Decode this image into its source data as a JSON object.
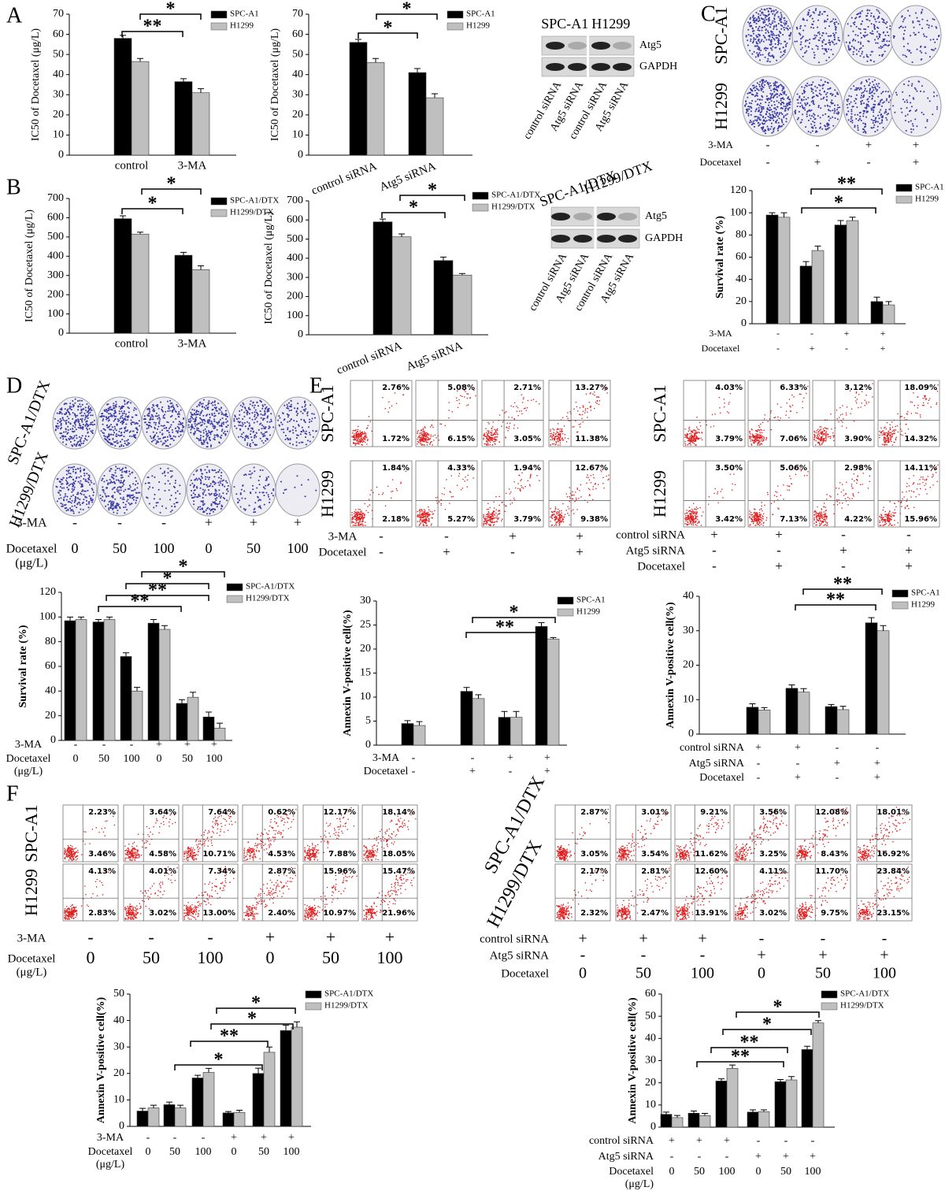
{
  "panel_letters": [
    "A",
    "B",
    "C",
    "D",
    "E",
    "F"
  ],
  "chart_data": [
    {
      "type": "bar",
      "ylabel": "IC50 of Docetaxel (μg/L)",
      "categories": [
        "control",
        "3-MA"
      ],
      "series": [
        {
          "name": "SPC-A1",
          "color": "#000000",
          "values": [
            58,
            36.5
          ],
          "errors": [
            1.5,
            1.5
          ]
        },
        {
          "name": "H1299",
          "color": "#bfbfbf",
          "values": [
            46.5,
            31
          ],
          "errors": [
            1.5,
            2
          ]
        }
      ],
      "ylim": [
        0,
        70
      ],
      "yticks": [
        0,
        10,
        20,
        30,
        40,
        50,
        60,
        70
      ],
      "annotations": [
        "*",
        "**"
      ]
    },
    {
      "type": "bar",
      "ylabel": "IC50 of Docetaxel (μg/L)",
      "categories": [
        "control siRNA",
        "Atg5 siRNA"
      ],
      "series": [
        {
          "name": "SPC-A1",
          "color": "#000000",
          "values": [
            56,
            41
          ],
          "errors": [
            1.5,
            2
          ]
        },
        {
          "name": "H1299",
          "color": "#bfbfbf",
          "values": [
            46,
            28.5
          ],
          "errors": [
            2,
            2
          ]
        }
      ],
      "ylim": [
        0,
        70
      ],
      "yticks": [
        0,
        10,
        20,
        30,
        40,
        50,
        60,
        70
      ],
      "annotations": [
        "*",
        "*"
      ]
    },
    {
      "type": "bar",
      "ylabel": "IC50 of Docetaxel (μg/L)",
      "categories": [
        "control",
        "3-MA"
      ],
      "series": [
        {
          "name": "SPC-A1/DTX",
          "color": "#000000",
          "values": [
            595,
            405
          ],
          "errors": [
            15,
            15
          ]
        },
        {
          "name": "H1299/DTX",
          "color": "#bfbfbf",
          "values": [
            515,
            330
          ],
          "errors": [
            10,
            20
          ]
        }
      ],
      "ylim": [
        0,
        700
      ],
      "yticks": [
        0,
        100,
        200,
        300,
        400,
        500,
        600,
        700
      ],
      "annotations": [
        "*",
        "*"
      ]
    },
    {
      "type": "bar",
      "ylabel": "IC50 of Docetaxel (μg/L)",
      "categories": [
        "control siRNA",
        "Atg5 siRNA"
      ],
      "series": [
        {
          "name": "SPC-A1/DTX",
          "color": "#000000",
          "values": [
            590,
            388
          ],
          "errors": [
            15,
            18
          ]
        },
        {
          "name": "H1299/DTX",
          "color": "#bfbfbf",
          "values": [
            512,
            312
          ],
          "errors": [
            15,
            8
          ]
        }
      ],
      "ylim": [
        0,
        700
      ],
      "yticks": [
        0,
        100,
        200,
        300,
        400,
        500,
        600,
        700
      ],
      "annotations": [
        "*",
        "*"
      ]
    },
    {
      "type": "bar",
      "ylabel": "Survival rate (%)",
      "conditions": [
        {
          "label": "3-MA",
          "values": [
            "-",
            "-",
            "+",
            "+"
          ]
        },
        {
          "label": "Docetaxel",
          "values": [
            "-",
            "+",
            "-",
            "+"
          ]
        }
      ],
      "series": [
        {
          "name": "SPC-A1",
          "color": "#000000",
          "values": [
            98,
            52,
            89,
            20
          ],
          "errors": [
            2,
            4,
            4,
            4
          ]
        },
        {
          "name": "H1299",
          "color": "#bfbfbf",
          "values": [
            96,
            66,
            93,
            17
          ],
          "errors": [
            4,
            4,
            3,
            3
          ]
        }
      ],
      "ylim": [
        0,
        120
      ],
      "yticks": [
        0,
        20,
        40,
        60,
        80,
        100,
        120
      ],
      "annotations": [
        "**",
        "*"
      ]
    },
    {
      "type": "bar",
      "ylabel": "Survival rate (%)",
      "conditions": [
        {
          "label": "3-MA",
          "values": [
            "-",
            "-",
            "-",
            "+",
            "+",
            "+"
          ]
        },
        {
          "label": "Docetaxel",
          "sublabel": "(μg/L)",
          "values": [
            "0",
            "50",
            "100",
            "0",
            "50",
            "100"
          ]
        }
      ],
      "series": [
        {
          "name": "SPC-A1/DTX",
          "color": "#000000",
          "values": [
            97,
            96,
            68,
            95,
            30,
            19
          ],
          "errors": [
            3,
            2,
            3,
            3,
            3,
            4
          ]
        },
        {
          "name": "H1299/DTX",
          "color": "#bfbfbf",
          "values": [
            98,
            98,
            40,
            90,
            35,
            10
          ],
          "errors": [
            2,
            2,
            3,
            3,
            4,
            4
          ]
        }
      ],
      "ylim": [
        0,
        120
      ],
      "yticks": [
        0,
        20,
        40,
        60,
        80,
        100,
        120
      ],
      "annotations": [
        "*",
        "*",
        "**",
        "**"
      ]
    },
    {
      "type": "bar",
      "ylabel": "Annexin V-positive cell(%)",
      "conditions": [
        {
          "label": "3-MA",
          "values": [
            "-",
            "-",
            "+",
            "+"
          ]
        },
        {
          "label": "Docetaxel",
          "values": [
            "-",
            "+",
            "-",
            "+"
          ]
        }
      ],
      "series": [
        {
          "name": "SPC-A1",
          "color": "#000000",
          "values": [
            4.5,
            11.2,
            5.8,
            24.7
          ],
          "errors": [
            0.6,
            0.8,
            1.2,
            0.8
          ]
        },
        {
          "name": "H1299",
          "color": "#bfbfbf",
          "values": [
            4.1,
            9.7,
            5.8,
            22.1
          ],
          "errors": [
            0.8,
            0.8,
            1.2,
            0.3
          ]
        }
      ],
      "ylim": [
        0,
        30
      ],
      "yticks": [
        0,
        5,
        10,
        15,
        20,
        25,
        30
      ],
      "annotations": [
        "*",
        "**"
      ]
    },
    {
      "type": "bar",
      "ylabel": "Annexin V-positive cell(%)",
      "conditions": [
        {
          "label": "control siRNA",
          "values": [
            "+",
            "+",
            "-",
            "-"
          ]
        },
        {
          "label": "Atg5 siRNA",
          "values": [
            "-",
            "-",
            "+",
            "+"
          ]
        },
        {
          "label": "Docetaxel",
          "values": [
            "-",
            "+",
            "-",
            "+"
          ]
        }
      ],
      "series": [
        {
          "name": "SPC-A1",
          "color": "#000000",
          "values": [
            7.8,
            13.3,
            8,
            32.3
          ],
          "errors": [
            1,
            1,
            0.6,
            1.5
          ]
        },
        {
          "name": "H1299",
          "color": "#bfbfbf",
          "values": [
            7,
            12.2,
            7.1,
            30
          ],
          "errors": [
            0.7,
            1,
            1,
            1.5
          ]
        }
      ],
      "ylim": [
        0,
        40
      ],
      "yticks": [
        0,
        10,
        20,
        30,
        40
      ],
      "annotations": [
        "**",
        "**"
      ]
    },
    {
      "type": "bar",
      "ylabel": "Annexin V-positive cell(%)",
      "conditions": [
        {
          "label": "3-MA",
          "values": [
            "-",
            "-",
            "-",
            "+",
            "+",
            "+"
          ]
        },
        {
          "label": "Docetaxel",
          "sublabel": "(μg/L)",
          "values": [
            "0",
            "50",
            "100",
            "0",
            "50",
            "100"
          ]
        }
      ],
      "series": [
        {
          "name": "SPC-A1/DTX",
          "color": "#000000",
          "values": [
            5.8,
            8.2,
            18.3,
            5.1,
            20,
            36.2
          ],
          "errors": [
            1,
            1,
            1,
            0.5,
            2,
            2
          ]
        },
        {
          "name": "H1299/DTX",
          "color": "#bfbfbf",
          "values": [
            7,
            7,
            20.4,
            5.3,
            28,
            37.5
          ],
          "errors": [
            1,
            1,
            1.5,
            0.8,
            2,
            2
          ]
        }
      ],
      "ylim": [
        0,
        50
      ],
      "yticks": [
        0,
        10,
        20,
        30,
        40,
        50
      ],
      "annotations": [
        "*",
        "*",
        "**",
        "*"
      ]
    },
    {
      "type": "bar",
      "ylabel": "Annexin V-positive cell(%)",
      "conditions": [
        {
          "label": "control siRNA",
          "values": [
            "+",
            "+",
            "+",
            "-",
            "-",
            "-"
          ]
        },
        {
          "label": "Atg5 siRNA",
          "values": [
            "-",
            "-",
            "-",
            "+",
            "+",
            "+"
          ]
        },
        {
          "label": "Docetaxel",
          "sublabel": "(μg/L)",
          "values": [
            "0",
            "50",
            "100",
            "0",
            "50",
            "100"
          ]
        }
      ],
      "series": [
        {
          "name": "SPC-A1/DTX",
          "color": "#000000",
          "values": [
            5.8,
            6.3,
            20.8,
            6.8,
            20.5,
            35
          ],
          "errors": [
            1,
            1,
            1,
            1,
            1,
            1.5
          ]
        },
        {
          "name": "H1299/DTX",
          "color": "#bfbfbf",
          "values": [
            4.3,
            5.2,
            26.5,
            7,
            21.3,
            47
          ],
          "errors": [
            1,
            1,
            1.5,
            0.8,
            1.5,
            1
          ]
        }
      ],
      "ylim": [
        0,
        60
      ],
      "yticks": [
        0,
        10,
        20,
        30,
        40,
        50,
        60
      ],
      "annotations": [
        "*",
        "*",
        "**",
        "**"
      ]
    }
  ],
  "blots": [
    {
      "headers": [
        "SPC-A1",
        "H1299"
      ],
      "bands": [
        "Atg5",
        "GAPDH"
      ],
      "lanes": [
        "control siRNA",
        "Atg5 siRNA",
        "control siRNA",
        "Atg5 siRNA"
      ]
    },
    {
      "headers": [
        "SPC-A1/DTX",
        "H1299/DTX"
      ],
      "bands": [
        "Atg5",
        "GAPDH"
      ],
      "lanes": [
        "control siRNA",
        "Atg5 siRNA",
        "control siRNA",
        "Atg5 siRNA"
      ]
    }
  ],
  "colonies": [
    {
      "rows": [
        "SPC-A1",
        "H1299"
      ],
      "conditions": [
        {
          "label": "3-MA",
          "values": [
            "-",
            "-",
            "+",
            "+"
          ]
        },
        {
          "label": "Docetaxel",
          "values": [
            "-",
            "+",
            "-",
            "+"
          ]
        }
      ]
    },
    {
      "rows": [
        "SPC-A1/DTX",
        "H1299/DTX"
      ],
      "conditions": [
        {
          "label": "3-MA",
          "values": [
            "-",
            "-",
            "-",
            "+",
            "+",
            "+"
          ]
        },
        {
          "label": "Docetaxel",
          "sublabel": "(μg/L)",
          "values": [
            "0",
            "50",
            "100",
            "0",
            "50",
            "100"
          ]
        }
      ]
    }
  ],
  "flow": [
    {
      "rows": [
        {
          "label": "SPC-A1",
          "upper": [
            "2.76%",
            "5.08%",
            "2.71%",
            "13.27%"
          ],
          "lower": [
            "1.72%",
            "6.15%",
            "3.05%",
            "11.38%"
          ]
        },
        {
          "label": "H1299",
          "upper": [
            "1.84%",
            "4.33%",
            "1.94%",
            "12.67%"
          ],
          "lower": [
            "2.18%",
            "5.27%",
            "3.79%",
            "9.38%"
          ]
        }
      ],
      "conditions": [
        {
          "label": "3-MA",
          "values": [
            "-",
            "-",
            "+",
            "+"
          ]
        },
        {
          "label": "Docetaxel",
          "values": [
            "-",
            "+",
            "-",
            "+"
          ]
        }
      ]
    },
    {
      "rows": [
        {
          "label": "SPC-A1",
          "upper": [
            "4.03%",
            "6.33%",
            "3.12%",
            "18.09%"
          ],
          "lower": [
            "3.79%",
            "7.06%",
            "3.90%",
            "14.32%"
          ]
        },
        {
          "label": "H1299",
          "upper": [
            "3.50%",
            "5.06%",
            "2.98%",
            "14.11%"
          ],
          "lower": [
            "3.42%",
            "7.13%",
            "4.22%",
            "15.96%"
          ]
        }
      ],
      "conditions": [
        {
          "label": "control siRNA",
          "values": [
            "+",
            "+",
            "-",
            "-"
          ]
        },
        {
          "label": "Atg5 siRNA",
          "values": [
            "-",
            "-",
            "+",
            "+"
          ]
        },
        {
          "label": "Docetaxel",
          "values": [
            "-",
            "+",
            "-",
            "+"
          ]
        }
      ]
    },
    {
      "rows": [
        {
          "label": "SPC-A1",
          "upper": [
            "2.23%",
            "3.64%",
            "7.64%",
            "0.62%",
            "12.17%",
            "18.14%"
          ],
          "lower": [
            "3.46%",
            "4.58%",
            "10.71%",
            "4.53%",
            "7.88%",
            "18.05%"
          ]
        },
        {
          "label": "H1299",
          "upper": [
            "4.13%",
            "4.01%",
            "7.34%",
            "2.87%",
            "15.96%",
            "15.47%"
          ],
          "lower": [
            "2.83%",
            "3.02%",
            "13.00%",
            "2.40%",
            "10.97%",
            "21.96%"
          ]
        }
      ],
      "conditions": [
        {
          "label": "3-MA",
          "values": [
            "-",
            "-",
            "-",
            "+",
            "+",
            "+"
          ]
        },
        {
          "label": "Docetaxel",
          "sublabel": "(μg/L)",
          "values": [
            "0",
            "50",
            "100",
            "0",
            "50",
            "100"
          ]
        }
      ]
    },
    {
      "rows": [
        {
          "label": "SPC-A1/DTX",
          "upper": [
            "2.87%",
            "3.01%",
            "9.21%",
            "3.56%",
            "12.08%",
            "18.01%"
          ],
          "lower": [
            "3.05%",
            "3.54%",
            "11.62%",
            "3.25%",
            "8.43%",
            "16.92%"
          ]
        },
        {
          "label": "H1299/DTX",
          "upper": [
            "2.17%",
            "2.81%",
            "12.60%",
            "4.11%",
            "11.70%",
            "23.84%"
          ],
          "lower": [
            "2.32%",
            "2.47%",
            "13.91%",
            "3.02%",
            "9.75%",
            "23.15%"
          ]
        }
      ],
      "conditions": [
        {
          "label": "control siRNA",
          "values": [
            "+",
            "+",
            "+",
            "-",
            "-",
            "-"
          ]
        },
        {
          "label": "Atg5 siRNA",
          "values": [
            "-",
            "-",
            "-",
            "+",
            "+",
            "+"
          ]
        },
        {
          "label": "Docetaxel",
          "values": [
            "0",
            "50",
            "100",
            "0",
            "50",
            "100"
          ]
        }
      ]
    }
  ]
}
